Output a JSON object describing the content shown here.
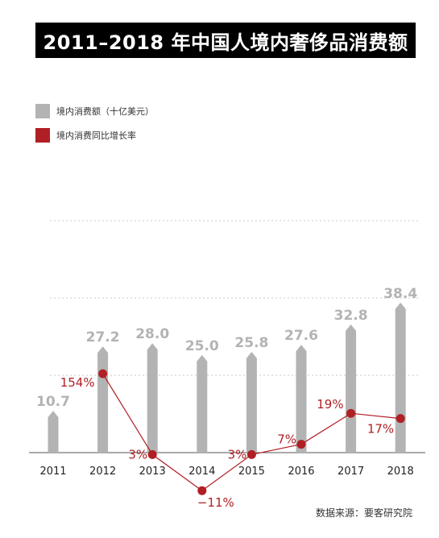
{
  "title": "2011–2018 年中国人境内奢侈品消费额",
  "legend": [
    {
      "label": "境内消费额（十亿美元）",
      "color": "#b3b3b3"
    },
    {
      "label": "境内消费同比增长率",
      "color": "#b01f24"
    }
  ],
  "source": "数据来源：要客研究院",
  "chart_data": {
    "type": "bar",
    "categories": [
      "2011",
      "2012",
      "2013",
      "2014",
      "2015",
      "2016",
      "2017",
      "2018"
    ],
    "series": [
      {
        "name": "境内消费额（十亿美元）",
        "type": "bar",
        "values": [
          10.7,
          27.2,
          28.0,
          25.0,
          25.8,
          27.6,
          32.8,
          38.4
        ],
        "labels": [
          "10.7",
          "27.2",
          "28.0",
          "25.0",
          "25.8",
          "27.6",
          "32.8",
          "38.4"
        ]
      },
      {
        "name": "境内消费同比增长率",
        "type": "line",
        "values": [
          154,
          3,
          -11,
          3,
          7,
          19,
          17
        ],
        "x": [
          "2012",
          "2013",
          "2014",
          "2015",
          "2016",
          "2017",
          "2018"
        ],
        "labels": [
          "154%",
          "3%",
          "−11%",
          "3%",
          "7%",
          "19%",
          "17%"
        ]
      }
    ],
    "grid": true,
    "legend_position": "top-left"
  }
}
